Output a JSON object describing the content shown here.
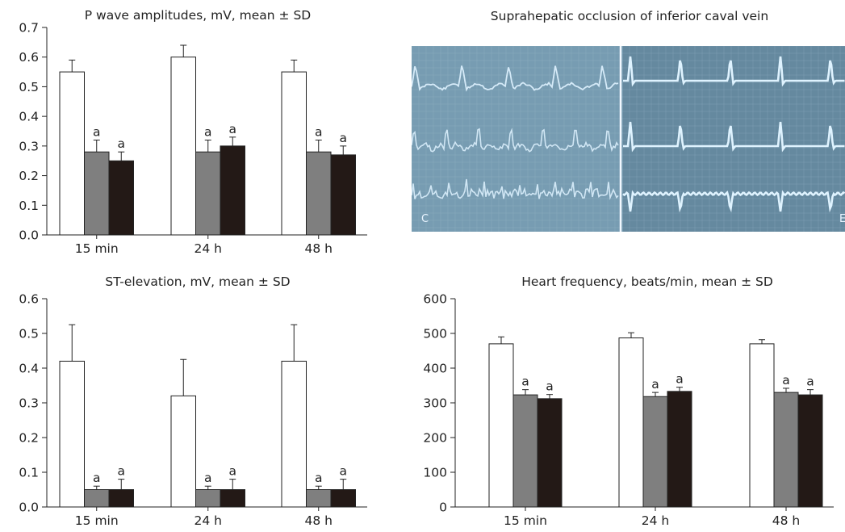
{
  "chart_data": [
    {
      "type": "bar",
      "title": "P wave amplitudes, mV, mean ± SD",
      "categories": [
        "15 min",
        "24 h",
        "48 h"
      ],
      "ylim": [
        0,
        0.7
      ],
      "yticks": [
        "0.0",
        "0.1",
        "0.2",
        "0.3",
        "0.4",
        "0.5",
        "0.6",
        "0.7"
      ],
      "ytick_values": [
        0,
        0.1,
        0.2,
        0.3,
        0.4,
        0.5,
        0.6,
        0.7
      ],
      "series": [
        {
          "color": "#ffffff",
          "values": [
            0.55,
            0.6,
            0.55
          ],
          "sd": [
            0.04,
            0.04,
            0.04
          ],
          "sig": [
            "",
            "",
            ""
          ]
        },
        {
          "color": "#7f7f7f",
          "values": [
            0.28,
            0.28,
            0.28
          ],
          "sd": [
            0.04,
            0.04,
            0.04
          ],
          "sig": [
            "a",
            "a",
            "a"
          ]
        },
        {
          "color": "#231916",
          "values": [
            0.25,
            0.3,
            0.27
          ],
          "sd": [
            0.03,
            0.03,
            0.03
          ],
          "sig": [
            "a",
            "a",
            "a"
          ]
        }
      ]
    },
    {
      "type": "bar",
      "title": "ST-elevation, mV, mean ± SD",
      "categories": [
        "15 min",
        "24 h",
        "48 h"
      ],
      "ylim": [
        0,
        0.6
      ],
      "yticks": [
        "0.0",
        "0.1",
        "0.2",
        "0.3",
        "0.4",
        "0.5",
        "0.6"
      ],
      "ytick_values": [
        0,
        0.1,
        0.2,
        0.3,
        0.4,
        0.5,
        0.6
      ],
      "series": [
        {
          "color": "#ffffff",
          "values": [
            0.42,
            0.32,
            0.42
          ],
          "sd": [
            0.105,
            0.105,
            0.105
          ],
          "sig": [
            "",
            "",
            ""
          ]
        },
        {
          "color": "#7f7f7f",
          "values": [
            0.05,
            0.05,
            0.05
          ],
          "sd": [
            0.01,
            0.01,
            0.01
          ],
          "sig": [
            "a",
            "a",
            "a"
          ]
        },
        {
          "color": "#231916",
          "values": [
            0.05,
            0.05,
            0.05
          ],
          "sd": [
            0.03,
            0.03,
            0.03
          ],
          "sig": [
            "a",
            "a",
            "a"
          ]
        }
      ]
    },
    {
      "type": "bar",
      "title": "Heart frequency, beats/min, mean ± SD",
      "categories": [
        "15 min",
        "24 h",
        "48 h"
      ],
      "ylim": [
        0,
        600
      ],
      "yticks": [
        "0",
        "100",
        "200",
        "300",
        "400",
        "500",
        "600"
      ],
      "ytick_values": [
        0,
        100,
        200,
        300,
        400,
        500,
        600
      ],
      "series": [
        {
          "color": "#ffffff",
          "values": [
            470,
            487,
            470
          ],
          "sd": [
            20,
            15,
            12
          ],
          "sig": [
            "",
            "",
            ""
          ]
        },
        {
          "color": "#7f7f7f",
          "values": [
            323,
            318,
            330
          ],
          "sd": [
            15,
            12,
            12
          ],
          "sig": [
            "a",
            "a",
            "a"
          ]
        },
        {
          "color": "#231916",
          "values": [
            312,
            333,
            323
          ],
          "sd": [
            12,
            12,
            15
          ],
          "sig": [
            "a",
            "a",
            "a"
          ]
        }
      ]
    }
  ],
  "ecg": {
    "title": "Suprahepatic occlusion of inferior caval vein",
    "left_label": "C",
    "right_label": "E",
    "background": "#6f94ab",
    "trace_color": "#dff3ff"
  }
}
